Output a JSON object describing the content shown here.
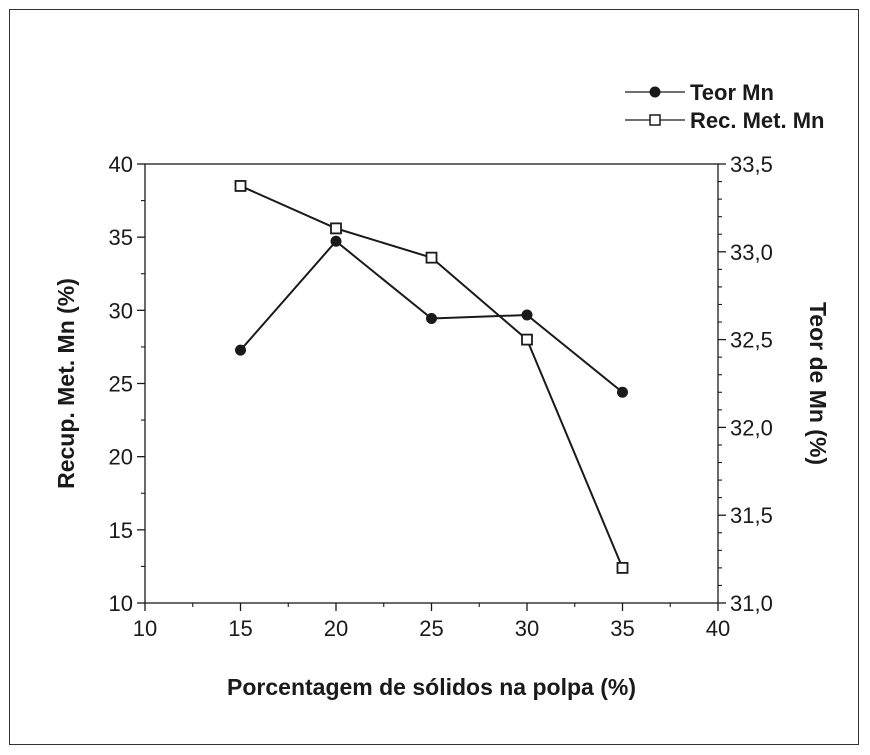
{
  "chart_data": {
    "type": "line",
    "xlabel": "Porcentagem de sólidos na polpa (%)",
    "ylabel": "Recup. Met. Mn (%)",
    "y2label": "Teor de Mn (%)",
    "xlim": [
      10,
      40
    ],
    "ylim": [
      10,
      40
    ],
    "y2lim": [
      31.0,
      33.5
    ],
    "x_ticks": [
      "10",
      "15",
      "20",
      "25",
      "30",
      "35",
      "40"
    ],
    "y_ticks": [
      "10",
      "15",
      "20",
      "25",
      "30",
      "35",
      "40"
    ],
    "y2_ticks": [
      "31,0",
      "31,5",
      "32,0",
      "32,5",
      "33,0",
      "33,5"
    ],
    "grid": false,
    "legend_position": "top-right",
    "x": [
      15,
      20,
      25,
      30,
      35
    ],
    "series": [
      {
        "name": "Teor Mn",
        "axis": "right",
        "marker": "filled-circle",
        "values": [
          32.44,
          33.06,
          32.62,
          32.64,
          32.2
        ]
      },
      {
        "name": "Rec. Met. Mn",
        "axis": "left",
        "marker": "open-square",
        "values": [
          38.5,
          35.6,
          33.6,
          28.0,
          12.4
        ]
      }
    ]
  },
  "colors": {
    "line": "#1a1a1a",
    "background": "#ffffff"
  }
}
